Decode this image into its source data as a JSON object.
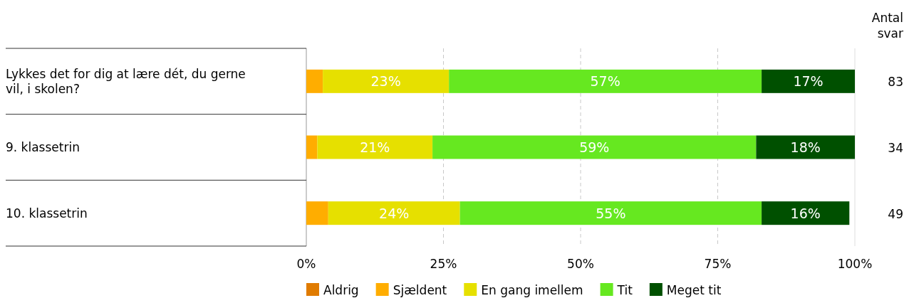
{
  "chart_data": {
    "type": "bar",
    "orientation": "horizontal",
    "stacked": true,
    "categories": [
      "Lykkes det for dig at lære dét, du gerne vil, i skolen?",
      "9. klassetrin",
      "10. klassetrin"
    ],
    "series": [
      {
        "name": "Aldrig",
        "color": "#e07b00",
        "values": [
          0,
          0,
          0
        ],
        "value_labels": [
          null,
          null,
          null
        ]
      },
      {
        "name": "Sjældent",
        "color": "#ffad00",
        "values": [
          3,
          2,
          4
        ],
        "value_labels": [
          null,
          null,
          null
        ]
      },
      {
        "name": "En gang imellem",
        "color": "#e6e000",
        "values": [
          23,
          21,
          24
        ],
        "value_labels": [
          "23%",
          "21%",
          "24%"
        ]
      },
      {
        "name": "Tit",
        "color": "#66e820",
        "values": [
          57,
          59,
          55
        ],
        "value_labels": [
          "57%",
          "59%",
          "55%"
        ]
      },
      {
        "name": "Meget tit",
        "color": "#005000",
        "values": [
          17,
          18,
          16
        ],
        "value_labels": [
          "17%",
          "18%",
          "16%"
        ]
      }
    ],
    "xlim": [
      0,
      100
    ],
    "xticks": [
      {
        "value": 0,
        "label": "0%"
      },
      {
        "value": 25,
        "label": "25%"
      },
      {
        "value": 50,
        "label": "50%"
      },
      {
        "value": 75,
        "label": "75%"
      },
      {
        "value": 100,
        "label": "100%"
      }
    ],
    "grid": "x",
    "legend": "bottom",
    "annotations": [
      "Antal svar",
      "83",
      "34",
      "49"
    ]
  }
}
